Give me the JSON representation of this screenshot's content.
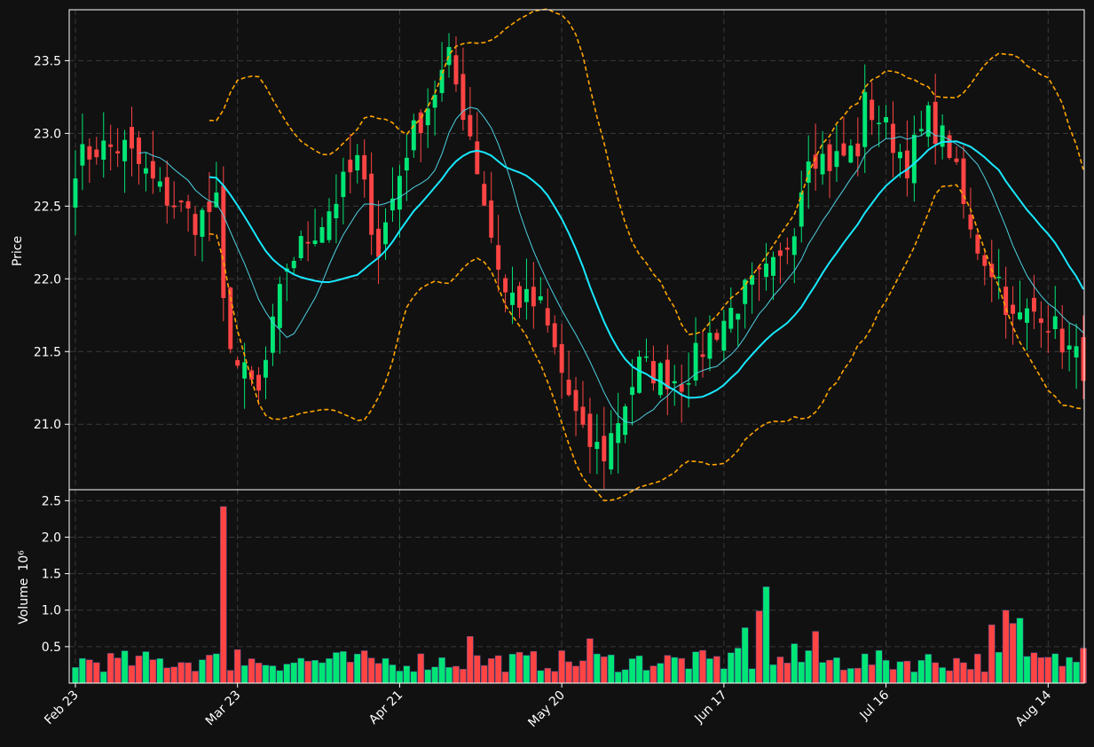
{
  "chart_data": [
    {
      "type": "candlestick",
      "panel": "price",
      "ylabel": "Price",
      "ylim": [
        20.55,
        23.85
      ],
      "yticks": [
        "21.0",
        "21.5",
        "22.0",
        "22.5",
        "23.0",
        "23.5"
      ],
      "grid": true,
      "colors": {
        "up": "#00e676",
        "down": "#ff4444",
        "ma_fast": "#4dd0e1",
        "ma_slow": "#18e8ff",
        "bands": "#ffa500",
        "background": "#111111",
        "grid": "#3a3a3a"
      },
      "close_anchors": [
        [
          0,
          22.8
        ],
        [
          3,
          22.9
        ],
        [
          7,
          22.9
        ],
        [
          12,
          22.6
        ],
        [
          17,
          22.4
        ],
        [
          20,
          22.5
        ],
        [
          21,
          21.8
        ],
        [
          23,
          21.4
        ],
        [
          26,
          21.2
        ],
        [
          30,
          22.1
        ],
        [
          35,
          22.4
        ],
        [
          40,
          22.8
        ],
        [
          43,
          22.2
        ],
        [
          47,
          22.9
        ],
        [
          53,
          23.5
        ],
        [
          56,
          23.0
        ],
        [
          59,
          22.3
        ],
        [
          61,
          21.9
        ],
        [
          66,
          21.8
        ],
        [
          70,
          21.2
        ],
        [
          72,
          20.9
        ],
        [
          75,
          20.8
        ],
        [
          80,
          21.4
        ],
        [
          86,
          21.3
        ],
        [
          90,
          21.6
        ],
        [
          95,
          21.9
        ],
        [
          100,
          22.1
        ],
        [
          102,
          22.4
        ],
        [
          104,
          22.9
        ],
        [
          107,
          22.8
        ],
        [
          111,
          22.9
        ],
        [
          112,
          23.2
        ],
        [
          114,
          23.1
        ],
        [
          118,
          22.8
        ],
        [
          121,
          23.1
        ],
        [
          124,
          22.9
        ],
        [
          127,
          22.3
        ],
        [
          131,
          22.0
        ],
        [
          133,
          21.7
        ],
        [
          137,
          21.8
        ],
        [
          141,
          21.5
        ],
        [
          143,
          21.4
        ]
      ],
      "date_ticks": [
        {
          "label": "Feb 23",
          "index": 0
        },
        {
          "label": "Mar 23",
          "index": 23
        },
        {
          "label": "Apr 21",
          "index": 46
        },
        {
          "label": "May 20",
          "index": 69
        },
        {
          "label": "Jun 17",
          "index": 92
        },
        {
          "label": "Jul 16",
          "index": 115
        },
        {
          "label": "Aug 14",
          "index": 138
        }
      ]
    },
    {
      "type": "bar",
      "panel": "volume",
      "ylabel": "Volume",
      "ylabel_exponent": "10⁶",
      "ylim": [
        0,
        2.65
      ],
      "yticks": [
        "0.5",
        "1.0",
        "1.5",
        "2.0",
        "2.5"
      ],
      "spikes": [
        [
          21,
          2.42
        ],
        [
          23,
          0.46
        ],
        [
          45,
          0.25
        ],
        [
          56,
          0.64
        ],
        [
          73,
          0.61
        ],
        [
          94,
          0.48
        ],
        [
          95,
          0.76
        ],
        [
          97,
          0.99
        ],
        [
          98,
          1.32
        ],
        [
          102,
          0.54
        ],
        [
          105,
          0.71
        ],
        [
          130,
          0.8
        ],
        [
          132,
          1.0
        ],
        [
          133,
          0.82
        ],
        [
          134,
          0.89
        ],
        [
          143,
          0.48
        ]
      ]
    }
  ]
}
